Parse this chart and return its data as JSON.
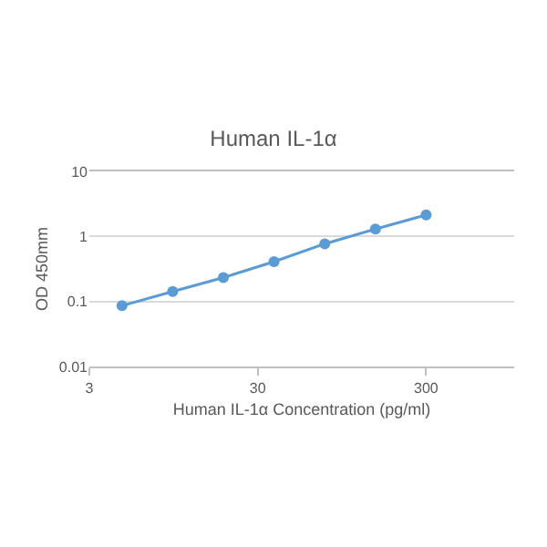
{
  "chart_data": {
    "type": "line",
    "title": "Human IL-1α",
    "xlabel": "Human IL-1α Concentration (pg/ml)",
    "ylabel": "OD 450mm",
    "x": [
      4.6875,
      9.375,
      18.75,
      37.5,
      75,
      150,
      300
    ],
    "series": [
      {
        "color": "#5b9bd5",
        "values": [
          0.086,
          0.142,
          0.233,
          0.41,
          0.77,
          1.3,
          2.14
        ]
      }
    ],
    "log": "xy",
    "xlim": [
      3,
      1000
    ],
    "xticks": [
      3,
      30,
      300
    ],
    "ylim": [
      0.01,
      10
    ],
    "yticks": [
      0.01,
      0.1,
      1,
      10
    ],
    "grid": "y",
    "marker": "circle",
    "line_style": "solid"
  }
}
